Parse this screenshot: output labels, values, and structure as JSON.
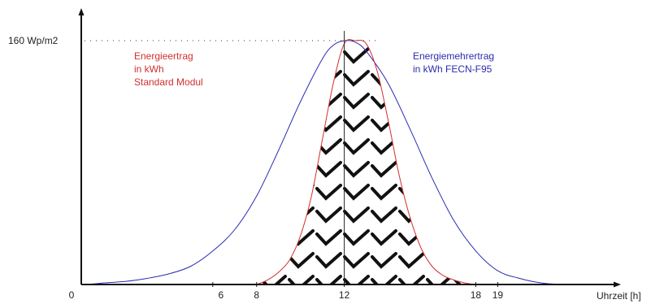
{
  "chart_data": {
    "type": "area",
    "x_unit_label": "Uhrzeit [h]",
    "y_tick_label": "160 Wp/m2",
    "x_tick_labels": [
      "0",
      "6",
      "8",
      "12",
      "18",
      "19"
    ],
    "x_ticks": [
      0,
      6,
      8,
      12,
      18,
      19
    ],
    "xlim": [
      0,
      24.4
    ],
    "ylim": [
      0,
      160
    ],
    "series": [
      {
        "name": "Energieertrag in kWh Standard Modul",
        "label_lines": [
          "Energieertrag",
          "in kWh",
          "Standard Modul"
        ],
        "color": "#d32f2f",
        "fill_pattern": "chevron",
        "x": [
          8,
          8.5,
          9,
          9.5,
          10,
          10.5,
          11,
          11.5,
          12,
          12.5,
          13,
          13.5,
          14,
          14.5,
          15,
          15.5,
          16,
          16.5,
          17,
          17.5,
          18
        ],
        "y": [
          0,
          3,
          8,
          16,
          32,
          58,
          95,
          132,
          158,
          160,
          158,
          140,
          108,
          72,
          44,
          24,
          12,
          6,
          3,
          1,
          0
        ]
      },
      {
        "name": "Energiemehrertrag in kWh FECN-F95",
        "label_lines": [
          "Energiemehrertrag",
          "in kWh FECN-F95"
        ],
        "color": "#2b2bb0",
        "x": [
          0.3,
          1,
          2,
          3,
          4,
          5,
          6,
          7,
          8,
          9,
          10,
          11,
          11.5,
          12,
          12.5,
          13,
          14,
          15,
          16,
          17,
          18,
          19,
          20,
          21,
          22,
          22.3
        ],
        "y": [
          0,
          1,
          2,
          4,
          7,
          12,
          22,
          36,
          58,
          88,
          120,
          148,
          157,
          160,
          159,
          153,
          132,
          102,
          70,
          42,
          22,
          9,
          4,
          1,
          0,
          0
        ]
      }
    ],
    "reference_line_x": 12,
    "reference_line_y": 160
  }
}
